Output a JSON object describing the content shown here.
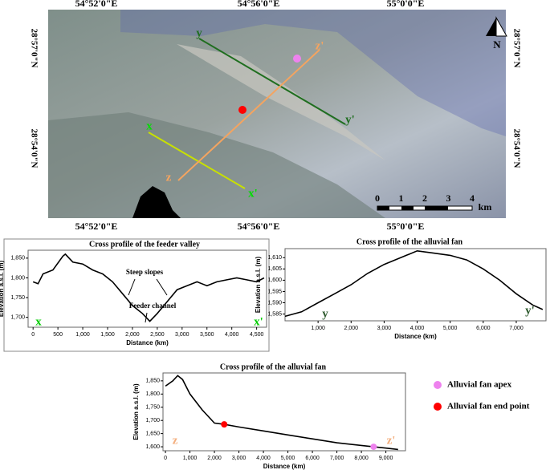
{
  "map": {
    "lon_labels": [
      "54°52'0\"E",
      "54°56'0\"E",
      "55°0'0\"E"
    ],
    "lat_labels": [
      "28°57'0\"N",
      "28°54'0\"N"
    ],
    "line_labels": [
      "y",
      "y'",
      "x",
      "x'",
      "z",
      "z'"
    ],
    "scale_labels": [
      "0",
      "1",
      "2",
      "3",
      "4"
    ],
    "scale_unit": "km",
    "north": "N"
  },
  "chart_data": [
    {
      "type": "line",
      "title": "Cross profile of the feeder valley",
      "x_label": "Distance (km)",
      "y_label": "Elevation a.s.l. (m)",
      "color": "#000000",
      "x": [
        0,
        100,
        200,
        400,
        600,
        650,
        800,
        1000,
        1200,
        1400,
        1600,
        1800,
        2000,
        2200,
        2350,
        2500,
        2700,
        2900,
        3100,
        3300,
        3500,
        3700,
        3900,
        4100,
        4300,
        4500,
        4650
      ],
      "values": [
        1790,
        1785,
        1810,
        1820,
        1855,
        1860,
        1840,
        1835,
        1820,
        1810,
        1790,
        1760,
        1730,
        1710,
        1690,
        1710,
        1740,
        1770,
        1780,
        1790,
        1780,
        1790,
        1795,
        1800,
        1795,
        1790,
        1800
      ],
      "xlim": [
        -100,
        4700
      ],
      "ylim": [
        1675,
        1870
      ],
      "xticks": [
        0,
        500,
        {
          "value": 1000,
          "label": "1,000"
        },
        {
          "value": 1500,
          "label": "1,500"
        },
        {
          "value": 2000,
          "label": "2,000"
        },
        {
          "value": 2500,
          "label": "2,500"
        },
        {
          "value": 3000,
          "label": "3,000"
        },
        {
          "value": 3500,
          "label": "3,500"
        },
        {
          "value": 4000,
          "label": "4,000"
        },
        {
          "value": 4500,
          "label": "4,500"
        }
      ],
      "yticks": [
        {
          "value": 1700,
          "label": "1,700"
        },
        {
          "value": 1750,
          "label": "1,750"
        },
        {
          "value": 1800,
          "label": "1,800"
        },
        {
          "value": 1850,
          "label": "1,850"
        }
      ],
      "annotations": [
        "Steep slopes",
        "Feeder channel",
        "x",
        "x'"
      ]
    },
    {
      "type": "line",
      "title": "Cross profile of the alluvial fan",
      "x_label": "Distance (km)",
      "y_label": "Elevation a.s.l. (m)",
      "color": "#000000",
      "x": [
        0,
        500,
        1000,
        1500,
        2000,
        2500,
        3000,
        3500,
        4000,
        4500,
        5000,
        5500,
        6000,
        6500,
        7000,
        7500,
        7800
      ],
      "values": [
        1584,
        1586,
        1590,
        1594,
        1598,
        1603,
        1607,
        1610,
        1613,
        1612,
        1611,
        1609,
        1605,
        1600,
        1594,
        1589,
        1587
      ],
      "xlim": [
        0,
        7900
      ],
      "ylim": [
        1582,
        1614
      ],
      "xticks": [
        {
          "value": 1000,
          "label": "1,000"
        },
        {
          "value": 2000,
          "label": "2,000"
        },
        {
          "value": 3000,
          "label": "3,000"
        },
        {
          "value": 4000,
          "label": "4,000"
        },
        {
          "value": 5000,
          "label": "5,000"
        },
        {
          "value": 6000,
          "label": "6,000"
        },
        {
          "value": 7000,
          "label": "7,000"
        }
      ],
      "yticks": [
        {
          "value": 1585,
          "label": "1,585"
        },
        {
          "value": 1590,
          "label": "1,590"
        },
        {
          "value": 1595,
          "label": "1,595"
        },
        {
          "value": 1600,
          "label": "1,600"
        },
        {
          "value": 1605,
          "label": "1,605"
        },
        {
          "value": 1610,
          "label": "1,610"
        }
      ],
      "annotations": [
        "y",
        "y'"
      ]
    },
    {
      "type": "line",
      "title": "Cross profile of the alluvial fan",
      "x_label": "Distance (km)",
      "y_label": "Elevation a.s.l. (m)",
      "color": "#000000",
      "x": [
        0,
        300,
        500,
        700,
        1000,
        1500,
        2000,
        2400,
        3000,
        4000,
        5000,
        6000,
        7000,
        8000,
        8500,
        9000,
        9500
      ],
      "values": [
        1830,
        1850,
        1870,
        1855,
        1800,
        1740,
        1690,
        1685,
        1675,
        1660,
        1645,
        1630,
        1615,
        1605,
        1600,
        1595,
        1590
      ],
      "xlim": [
        -100,
        9800
      ],
      "ylim": [
        1585,
        1880
      ],
      "xticks": [
        0,
        {
          "value": 1000,
          "label": "1,000"
        },
        {
          "value": 2000,
          "label": "2,000"
        },
        {
          "value": 3000,
          "label": "3,000"
        },
        {
          "value": 4000,
          "label": "4,000"
        },
        {
          "value": 5000,
          "label": "5,000"
        },
        {
          "value": 6000,
          "label": "6,000"
        },
        {
          "value": 7000,
          "label": "7,000"
        },
        {
          "value": 8000,
          "label": "8,000"
        },
        {
          "value": 9000,
          "label": "9,000"
        }
      ],
      "yticks": [
        {
          "value": 1600,
          "label": "1,600"
        },
        {
          "value": 1650,
          "label": "1,650"
        },
        {
          "value": 1700,
          "label": "1,700"
        },
        {
          "value": 1750,
          "label": "1,750"
        },
        {
          "value": 1800,
          "label": "1,800"
        },
        {
          "value": 1850,
          "label": "1,850"
        }
      ],
      "points": [
        {
          "name": "Alluvial fan apex",
          "color": "#ee82ee",
          "x": 8500,
          "y": 1600
        },
        {
          "name": "Alluvial fan end point",
          "color": "#ff0000",
          "x": 2400,
          "y": 1685
        }
      ],
      "annotations": [
        "z",
        "z'"
      ]
    }
  ]
}
